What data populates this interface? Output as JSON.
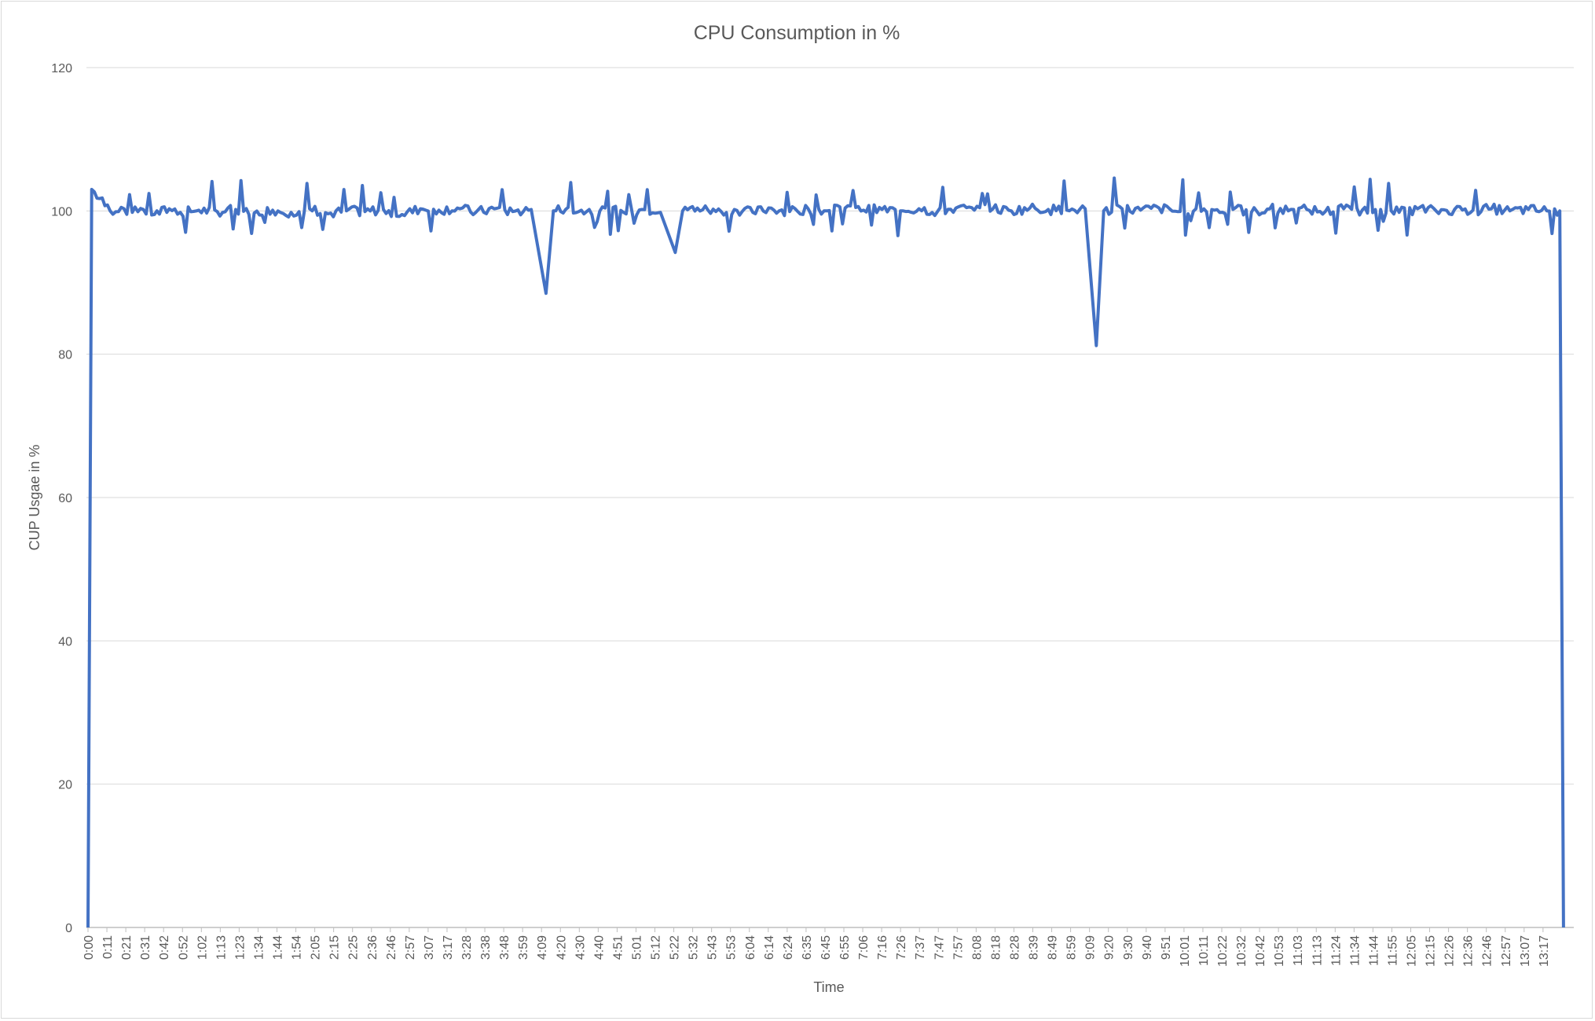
{
  "chart_data": {
    "type": "line",
    "title": "CPU Consumption in %",
    "xlabel": "Time",
    "ylabel": "CUP Usgae in %",
    "ylim": [
      0,
      120
    ],
    "yticks": [
      0,
      20,
      40,
      60,
      80,
      100,
      120
    ],
    "xticks": [
      "0:00",
      "0:11",
      "0:21",
      "0:31",
      "0:42",
      "0:52",
      "1:02",
      "1:13",
      "1:23",
      "1:34",
      "1:44",
      "1:54",
      "2:05",
      "2:15",
      "2:25",
      "2:36",
      "2:46",
      "2:57",
      "3:07",
      "3:17",
      "3:28",
      "3:38",
      "3:48",
      "3:59",
      "4:09",
      "4:20",
      "4:30",
      "4:40",
      "4:51",
      "5:01",
      "5:12",
      "5:22",
      "5:32",
      "5:43",
      "5:53",
      "6:04",
      "6:14",
      "6:24",
      "6:35",
      "6:45",
      "6:55",
      "7:06",
      "7:16",
      "7:26",
      "7:37",
      "7:47",
      "7:57",
      "8:08",
      "8:18",
      "8:28",
      "8:39",
      "8:49",
      "8:59",
      "9:09",
      "9:20",
      "9:30",
      "9:40",
      "9:51",
      "10:01",
      "10:11",
      "10:22",
      "10:32",
      "10:42",
      "10:53",
      "11:03",
      "11:13",
      "11:24",
      "11:34",
      "11:44",
      "11:55",
      "12:05",
      "12:15",
      "12:26",
      "12:36",
      "12:46",
      "12:57",
      "13:07",
      "13:17"
    ],
    "grid": true,
    "line_color": "#4472c4",
    "x_end_minutes": 805,
    "series": [
      {
        "points": [
          [
            0,
            0
          ],
          [
            2,
            103
          ],
          [
            12,
            100
          ],
          [
            18,
            100.5
          ],
          [
            24,
            99.8
          ],
          [
            30,
            100.2
          ],
          [
            36,
            99.5
          ],
          [
            44,
            100.3
          ],
          [
            50,
            99.8
          ],
          [
            60,
            100.1
          ],
          [
            70,
            99.9
          ],
          [
            80,
            100.2
          ],
          [
            90,
            99.7
          ],
          [
            100,
            100.1
          ],
          [
            110,
            99.8
          ],
          [
            120,
            100.3
          ],
          [
            130,
            99.6
          ],
          [
            140,
            100
          ],
          [
            150,
            99.9
          ],
          [
            160,
            100.2
          ],
          [
            170,
            99.5
          ],
          [
            180,
            100.3
          ],
          [
            190,
            100.1
          ],
          [
            200,
            100.4
          ],
          [
            210,
            99.8
          ],
          [
            220,
            100.3
          ],
          [
            230,
            99.9
          ],
          [
            240,
            100.2
          ],
          [
            248,
            88.5
          ],
          [
            252,
            100
          ],
          [
            260,
            100.5
          ],
          [
            270,
            99.9
          ],
          [
            280,
            100.4
          ],
          [
            290,
            99.8
          ],
          [
            300,
            100.2
          ],
          [
            310,
            99.8
          ],
          [
            318,
            94.2
          ],
          [
            322,
            100
          ],
          [
            330,
            100.4
          ],
          [
            340,
            99.9
          ],
          [
            350,
            100.2
          ],
          [
            360,
            99.8
          ],
          [
            370,
            100.4
          ],
          [
            380,
            99.9
          ],
          [
            390,
            100.3
          ],
          [
            400,
            100
          ],
          [
            410,
            100.4
          ],
          [
            420,
            100.1
          ],
          [
            430,
            100.2
          ],
          [
            440,
            100
          ],
          [
            450,
            100.3
          ],
          [
            460,
            99.9
          ],
          [
            470,
            100.4
          ],
          [
            480,
            100.1
          ],
          [
            490,
            100.3
          ],
          [
            500,
            100
          ],
          [
            510,
            100.4
          ],
          [
            520,
            100.2
          ],
          [
            530,
            100.1
          ],
          [
            540,
            100.3
          ],
          [
            546,
            81.2
          ],
          [
            550,
            100
          ],
          [
            560,
            100.3
          ],
          [
            570,
            100.1
          ],
          [
            580,
            100.4
          ],
          [
            590,
            99.9
          ],
          [
            600,
            100.3
          ],
          [
            610,
            100.1
          ],
          [
            620,
            100.2
          ],
          [
            630,
            99.8
          ],
          [
            640,
            100.3
          ],
          [
            650,
            100
          ],
          [
            660,
            100.2
          ],
          [
            670,
            99.9
          ],
          [
            680,
            100.3
          ],
          [
            690,
            100.1
          ],
          [
            700,
            100.2
          ],
          [
            710,
            99.8
          ],
          [
            720,
            100.3
          ],
          [
            730,
            100
          ],
          [
            740,
            100.2
          ],
          [
            750,
            100.1
          ],
          [
            760,
            100.3
          ],
          [
            770,
            100
          ],
          [
            780,
            100.2
          ],
          [
            790,
            100
          ],
          [
            797,
            100
          ],
          [
            799,
            0
          ]
        ]
      }
    ]
  }
}
